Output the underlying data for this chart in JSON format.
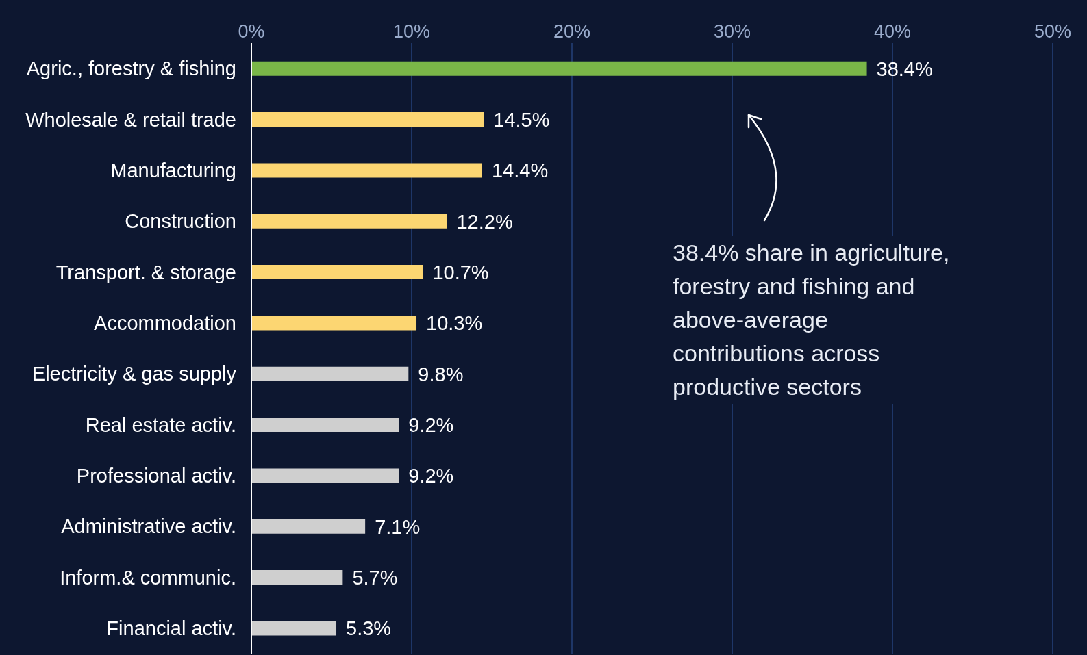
{
  "chart_data": {
    "type": "bar",
    "orientation": "horizontal",
    "categories": [
      "Agric., forestry & fishing",
      "Wholesale & retail trade",
      "Manufacturing",
      "Construction",
      "Transport. & storage",
      "Accommodation",
      "Electricity & gas supply",
      "Real estate activ.",
      "Professional activ.",
      "Administrative activ.",
      "Inform.& communic.",
      "Financial activ."
    ],
    "values": [
      38.4,
      14.5,
      14.4,
      12.2,
      10.7,
      10.3,
      9.8,
      9.2,
      9.2,
      7.1,
      5.7,
      5.3
    ],
    "colors": [
      "#7ab648",
      "#fcd672",
      "#fcd672",
      "#fcd672",
      "#fcd672",
      "#fcd672",
      "#cfcfcf",
      "#cfcfcf",
      "#cfcfcf",
      "#cfcfcf",
      "#cfcfcf",
      "#cfcfcf"
    ],
    "value_labels": [
      "38.4%",
      "14.5%",
      "14.4%",
      "12.2%",
      "10.7%",
      "10.3%",
      "9.8%",
      "9.2%",
      "9.2%",
      "7.1%",
      "5.7%",
      "5.3%"
    ],
    "xlim": [
      0,
      50
    ],
    "xticks": [
      {
        "value": 0,
        "label": "0%"
      },
      {
        "value": 10,
        "label": "10%"
      },
      {
        "value": 20,
        "label": "20%"
      },
      {
        "value": 30,
        "label": "30%"
      },
      {
        "value": 40,
        "label": "40%"
      },
      {
        "value": 50,
        "label": "50%"
      }
    ],
    "grid": "x",
    "annotations": [
      "38.4% share in agriculture, forestry and fishing and above-average contributions across productive sectors"
    ]
  }
}
